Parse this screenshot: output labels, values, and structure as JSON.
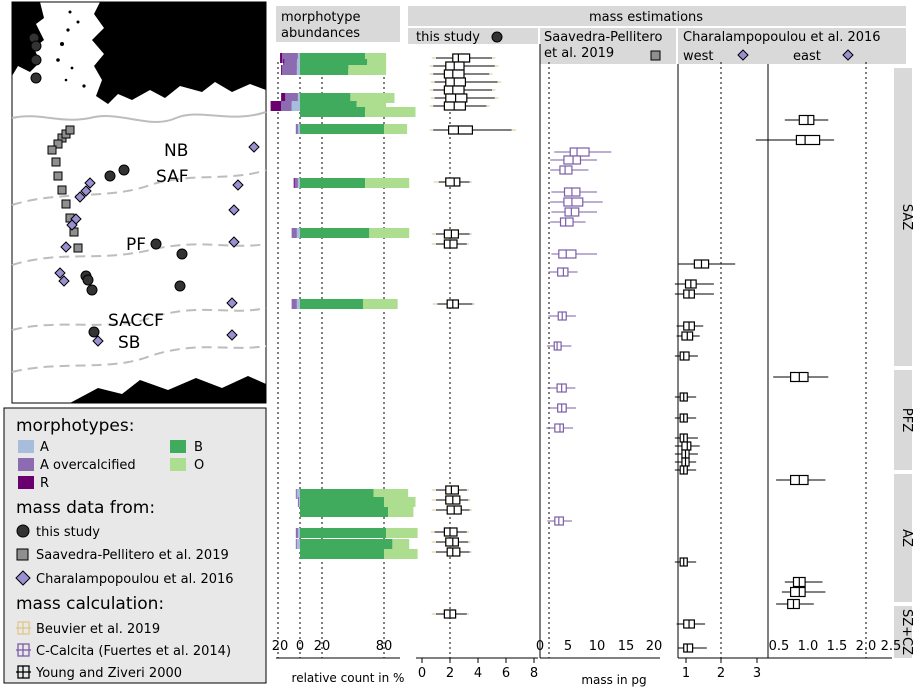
{
  "chart_data": {
    "type": "boxplot",
    "map_labels": [
      "NB",
      "SAF",
      "PF",
      "SACCF",
      "SB"
    ],
    "legend": {
      "morphotypes_title": "morphotypes:",
      "morphotypes": [
        {
          "label": "A",
          "color": "#a6bddb"
        },
        {
          "label": "A overcalcified",
          "color": "#8c6bb1"
        },
        {
          "label": "R",
          "color": "#6a0070"
        },
        {
          "label": "B",
          "color": "#41ab5d"
        },
        {
          "label": "O",
          "color": "#addd8e"
        }
      ],
      "mass_data_title": "mass data from:",
      "mass_data": [
        "this study",
        "Saavedra-Pellitero et al. 2019",
        "Charalampopoulou et al. 2016"
      ],
      "calc_title": "mass calculation:",
      "calc": [
        {
          "label": "Beuvier et al. 2019",
          "color": "#e0c68c"
        },
        {
          "label": "C-Calcita (Fuertes et al. 2014)",
          "color": "#7b5ea7"
        },
        {
          "label": "Young and Ziveri 2000",
          "color": "#000000"
        }
      ]
    },
    "panels": {
      "morphotype_title": "morphotype\nabundances",
      "mass_title": "mass estimations",
      "this_study": "this study",
      "saavedra": "Saavedra-Pellitero\net al. 2019",
      "charalampopoulou": "Charalampopoulou et al. 2016",
      "west": "west",
      "east": "east"
    },
    "zones": [
      "SAZ",
      "PFZ",
      "AZ",
      "SZ+CZ"
    ],
    "axes": {
      "abund_ticks": [
        "20",
        "0",
        "20",
        "80"
      ],
      "abund_xlabel": "relative count in %",
      "mass_xlabel": "mass in pg",
      "this_study_ticks": [
        "0",
        "2",
        "4",
        "6",
        "8"
      ],
      "saavedra_ticks": [
        "0",
        "5",
        "10",
        "15",
        "20"
      ],
      "west_ticks": [
        "1",
        "2",
        "3"
      ],
      "east_ticks": [
        "0.5",
        "1.0",
        "1.5",
        "2.0",
        "2.5"
      ]
    },
    "abundance_bars": [
      {
        "A": 2,
        "Aoc": 15,
        "R": 2,
        "B": 62,
        "O": 20
      },
      {
        "A": 3,
        "Aoc": 12,
        "R": 1,
        "B": 64,
        "O": 18
      },
      {
        "A": 3,
        "Aoc": 14,
        "R": 1,
        "B": 46,
        "O": 36
      },
      {
        "A": 2,
        "Aoc": 12,
        "R": 4,
        "B": 48,
        "O": 42
      },
      {
        "A": 8,
        "Aoc": 10,
        "R": 10,
        "B": 54,
        "O": 28
      },
      {
        "A": 0,
        "Aoc": 0,
        "R": 0,
        "B": 62,
        "O": 48
      },
      {
        "A": 2,
        "Aoc": 2,
        "R": 0,
        "B": 80,
        "O": 22
      },
      {
        "A": 2,
        "Aoc": 3,
        "R": 1,
        "B": 62,
        "O": 42
      },
      {
        "A": 3,
        "Aoc": 5,
        "R": 0,
        "B": 66,
        "O": 38
      },
      {
        "A": 3,
        "Aoc": 5,
        "R": 0,
        "B": 60,
        "O": 33
      },
      {
        "A": 3,
        "Aoc": 1,
        "R": 0,
        "B": 70,
        "O": 33
      },
      {
        "A": 1,
        "Aoc": 1,
        "R": 0,
        "B": 80,
        "O": 30
      },
      {
        "A": 0,
        "Aoc": 0,
        "R": 0,
        "B": 84,
        "O": 24
      },
      {
        "A": 2,
        "Aoc": 2,
        "R": 0,
        "B": 82,
        "O": 30
      },
      {
        "A": 3,
        "Aoc": 1,
        "R": 0,
        "B": 88,
        "O": 16
      },
      {
        "A": 0,
        "Aoc": 0,
        "R": 0,
        "B": 80,
        "O": 32
      }
    ],
    "this_study_rows": [
      {
        "q1": 2.2,
        "med": 2.6,
        "q3": 3.4,
        "wl": 1.0,
        "wh": 5.0
      },
      {
        "q1": 1.7,
        "med": 2.3,
        "q3": 3.0,
        "wl": 0.8,
        "wh": 5.2
      },
      {
        "q1": 1.6,
        "med": 2.2,
        "q3": 3.0,
        "wl": 0.8,
        "wh": 4.8
      },
      {
        "q1": 1.7,
        "med": 2.3,
        "q3": 3.1,
        "wl": 0.9,
        "wh": 5.4
      },
      {
        "q1": 1.6,
        "med": 2.2,
        "q3": 3.0,
        "wl": 0.8,
        "wh": 5.0
      },
      {
        "q1": 1.7,
        "med": 2.4,
        "q3": 3.2,
        "wl": 0.9,
        "wh": 5.2
      },
      {
        "q1": 1.6,
        "med": 2.3,
        "q3": 3.1,
        "wl": 0.8,
        "wh": 4.6
      },
      {
        "q1": 1.9,
        "med": 2.6,
        "q3": 3.6,
        "wl": 0.8,
        "wh": 6.4
      },
      {
        "q1": 1.7,
        "med": 2.3,
        "q3": 2.7,
        "wl": 1.2,
        "wh": 3.4
      },
      {
        "q1": 1.6,
        "med": 2.1,
        "q3": 2.6,
        "wl": 1.0,
        "wh": 3.4
      },
      {
        "q1": 1.6,
        "med": 2.0,
        "q3": 2.5,
        "wl": 1.0,
        "wh": 3.2
      },
      {
        "q1": 1.8,
        "med": 2.2,
        "q3": 2.6,
        "wl": 1.1,
        "wh": 3.6
      },
      {
        "q1": 1.7,
        "med": 2.1,
        "q3": 2.6,
        "wl": 1.0,
        "wh": 3.2
      },
      {
        "q1": 1.7,
        "med": 2.2,
        "q3": 2.7,
        "wl": 1.0,
        "wh": 3.3
      },
      {
        "q1": 1.8,
        "med": 2.3,
        "q3": 2.8,
        "wl": 1.0,
        "wh": 3.4
      },
      {
        "q1": 1.6,
        "med": 2.0,
        "q3": 2.5,
        "wl": 0.9,
        "wh": 3.2
      },
      {
        "q1": 1.7,
        "med": 2.2,
        "q3": 2.6,
        "wl": 1.0,
        "wh": 3.3
      },
      {
        "q1": 1.8,
        "med": 2.2,
        "q3": 2.7,
        "wl": 1.0,
        "wh": 3.4
      },
      {
        "q1": 1.6,
        "med": 2.0,
        "q3": 2.4,
        "wl": 1.0,
        "wh": 3.2
      }
    ],
    "saavedra_rows": [
      {
        "q1": 5.3,
        "med": 6.5,
        "q3": 8.6,
        "wl": 2.5,
        "wh": 12.5
      },
      {
        "q1": 4.2,
        "med": 5.8,
        "q3": 7.1,
        "wl": 1.8,
        "wh": 10.0
      },
      {
        "q1": 3.5,
        "med": 4.4,
        "q3": 5.6,
        "wl": 1.8,
        "wh": 8.5
      },
      {
        "q1": 4.3,
        "med": 5.6,
        "q3": 7.0,
        "wl": 2.0,
        "wh": 10.0
      },
      {
        "q1": 4.2,
        "med": 5.6,
        "q3": 7.5,
        "wl": 1.8,
        "wh": 11.0
      },
      {
        "q1": 4.4,
        "med": 5.5,
        "q3": 6.8,
        "wl": 2.0,
        "wh": 10.0
      },
      {
        "q1": 3.6,
        "med": 4.5,
        "q3": 5.8,
        "wl": 1.8,
        "wh": 8.0
      },
      {
        "q1": 3.3,
        "med": 4.6,
        "q3": 6.3,
        "wl": 2.0,
        "wh": 10.0
      },
      {
        "q1": 3.1,
        "med": 4.1,
        "q3": 4.9,
        "wl": 1.5,
        "wh": 6.6
      },
      {
        "q1": 3.2,
        "med": 3.9,
        "q3": 4.6,
        "wl": 1.5,
        "wh": 6.3
      },
      {
        "q1": 2.5,
        "med": 3.0,
        "q3": 3.7,
        "wl": 1.2,
        "wh": 5.5
      },
      {
        "q1": 3.0,
        "med": 3.8,
        "q3": 4.6,
        "wl": 1.3,
        "wh": 6.2
      },
      {
        "q1": 3.1,
        "med": 3.8,
        "q3": 4.6,
        "wl": 1.4,
        "wh": 6.3
      },
      {
        "q1": 2.6,
        "med": 3.5,
        "q3": 4.1,
        "wl": 1.1,
        "wh": 5.8
      },
      {
        "q1": 2.6,
        "med": 3.3,
        "q3": 4.1,
        "wl": 1.3,
        "wh": 5.6
      }
    ],
    "west_rows": [
      {
        "q1": 1.25,
        "med": 1.45,
        "q3": 1.65,
        "wl": 0.8,
        "wh": 2.4
      },
      {
        "q1": 1.0,
        "med": 1.15,
        "q3": 1.3,
        "wl": 0.7,
        "wh": 1.8
      },
      {
        "q1": 0.95,
        "med": 1.1,
        "q3": 1.25,
        "wl": 0.7,
        "wh": 1.8
      },
      {
        "q1": 0.95,
        "med": 1.1,
        "q3": 1.25,
        "wl": 0.75,
        "wh": 1.5
      },
      {
        "q1": 0.9,
        "med": 1.05,
        "q3": 1.2,
        "wl": 0.75,
        "wh": 1.4
      },
      {
        "q1": 0.85,
        "med": 0.95,
        "q3": 1.1,
        "wl": 0.7,
        "wh": 1.35
      },
      {
        "q1": 0.85,
        "med": 0.95,
        "q3": 1.05,
        "wl": 0.7,
        "wh": 1.3
      },
      {
        "q1": 0.85,
        "med": 0.95,
        "q3": 1.05,
        "wl": 0.7,
        "wh": 1.3
      },
      {
        "q1": 0.85,
        "med": 0.95,
        "q3": 1.05,
        "wl": 0.7,
        "wh": 1.35
      },
      {
        "q1": 0.9,
        "med": 1.05,
        "q3": 1.15,
        "wl": 0.7,
        "wh": 1.4
      },
      {
        "q1": 0.9,
        "med": 1.0,
        "q3": 1.1,
        "wl": 0.7,
        "wh": 1.35
      },
      {
        "q1": 0.9,
        "med": 1.0,
        "q3": 1.1,
        "wl": 0.7,
        "wh": 1.3
      },
      {
        "q1": 0.85,
        "med": 0.95,
        "q3": 1.05,
        "wl": 0.7,
        "wh": 1.3
      },
      {
        "q1": 0.85,
        "med": 0.95,
        "q3": 1.05,
        "wl": 0.7,
        "wh": 1.3
      },
      {
        "q1": 0.95,
        "med": 1.1,
        "q3": 1.25,
        "wl": 0.75,
        "wh": 1.55
      },
      {
        "q1": 0.95,
        "med": 1.05,
        "q3": 1.2,
        "wl": 0.8,
        "wh": 1.6
      }
    ],
    "east_rows": [
      {
        "q1": 0.85,
        "med": 1.0,
        "q3": 1.1,
        "wl": 0.6,
        "wh": 1.35
      },
      {
        "q1": 0.8,
        "med": 0.95,
        "q3": 1.2,
        "wl": 0.1,
        "wh": 1.45
      },
      {
        "q1": 0.7,
        "med": 0.85,
        "q3": 1.0,
        "wl": 0.4,
        "wh": 1.35
      },
      {
        "q1": 0.7,
        "med": 0.85,
        "q3": 1.0,
        "wl": 0.45,
        "wh": 1.3
      },
      {
        "q1": 0.75,
        "med": 0.85,
        "q3": 0.95,
        "wl": 0.6,
        "wh": 1.25
      },
      {
        "q1": 0.7,
        "med": 0.85,
        "q3": 0.95,
        "wl": 0.55,
        "wh": 1.3
      },
      {
        "q1": 0.65,
        "med": 0.75,
        "q3": 0.85,
        "wl": 0.45,
        "wh": 1.1
      }
    ]
  }
}
